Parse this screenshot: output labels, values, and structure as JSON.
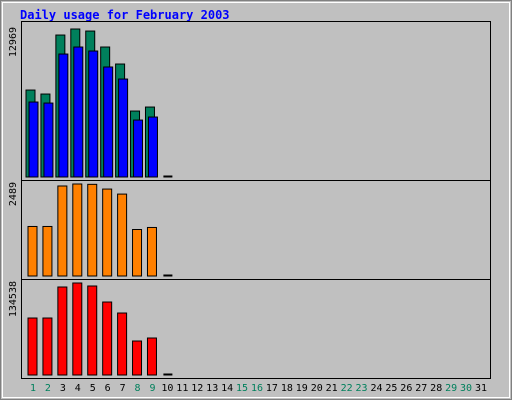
{
  "title": "Daily usage for February 2003",
  "chart_data": [
    {
      "type": "bar",
      "categories": [
        "1",
        "2",
        "3",
        "4",
        "5",
        "6",
        "7",
        "8",
        "9",
        "10",
        "11",
        "12",
        "13",
        "14",
        "15",
        "16",
        "17",
        "18",
        "19",
        "20",
        "21",
        "22",
        "23",
        "24",
        "25",
        "26",
        "27",
        "28",
        "29",
        "30",
        "31"
      ],
      "category_colors": [
        "#00805c",
        "#00805c",
        "#000000",
        "#000000",
        "#000000",
        "#000000",
        "#000000",
        "#00805c",
        "#00805c",
        "#000000",
        "#000000",
        "#000000",
        "#000000",
        "#000000",
        "#00805c",
        "#00805c",
        "#000000",
        "#000000",
        "#000000",
        "#000000",
        "#000000",
        "#00805c",
        "#00805c",
        "#000000",
        "#000000",
        "#000000",
        "#000000",
        "#000000",
        "#00805c",
        "#00805c",
        "#000000"
      ],
      "ylim": [
        0,
        12969
      ],
      "yticks": [
        12969
      ],
      "series": [
        {
          "color": "#00805c",
          "values": [
            7620,
            7270,
            12440,
            12969,
            12790,
            11390,
            9900,
            5780,
            6130,
            null,
            null,
            null,
            null,
            null,
            null,
            null,
            null,
            null,
            null,
            null,
            null,
            null,
            null,
            null,
            null,
            null,
            null,
            null,
            null,
            null,
            null
          ]
        },
        {
          "color": "#0000ff",
          "values": [
            6570,
            6480,
            10775,
            11390,
            11040,
            9640,
            8585,
            4990,
            5255,
            null,
            null,
            null,
            null,
            null,
            null,
            null,
            null,
            null,
            null,
            null,
            null,
            null,
            null,
            null,
            null,
            null,
            null,
            null,
            null,
            null,
            null
          ]
        }
      ]
    },
    {
      "type": "bar",
      "ylim": [
        0,
        2489
      ],
      "yticks": [
        2489
      ],
      "series": [
        {
          "color": "#ff8000",
          "values": [
            1340,
            1340,
            2435,
            2489,
            2480,
            2352,
            2216,
            1258,
            1313,
            null,
            null,
            null,
            null,
            null,
            null,
            null,
            null,
            null,
            null,
            null,
            null,
            null,
            null,
            null,
            null,
            null,
            null,
            null,
            null,
            null,
            null
          ]
        }
      ]
    },
    {
      "type": "bar",
      "ylim": [
        0,
        134538
      ],
      "yticks": [
        134538
      ],
      "series": [
        {
          "color": "#ff0000",
          "values": [
            83334,
            83334,
            128690,
            134538,
            130152,
            106726,
            90644,
            49708,
            54094,
            null,
            null,
            null,
            null,
            null,
            null,
            null,
            null,
            null,
            null,
            null,
            null,
            null,
            null,
            null,
            null,
            null,
            null,
            null,
            null,
            null,
            null
          ]
        }
      ]
    }
  ]
}
